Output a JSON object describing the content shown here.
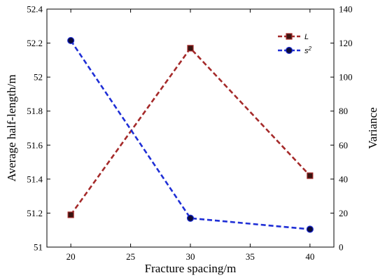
{
  "chart_data": {
    "type": "line",
    "x": [
      20,
      30,
      40
    ],
    "xlabel": "Fracture spacing/m",
    "ylabel_left": "Average half-length/m",
    "ylabel_right": "Variance",
    "xlim": [
      18,
      42
    ],
    "xticks": [
      "20",
      "25",
      "30",
      "35",
      "40"
    ],
    "ylim_left": [
      51,
      52.4
    ],
    "yticks_left": [
      "51",
      "51.2",
      "51.4",
      "51.6",
      "51.8",
      "52",
      "52.2",
      "52.4"
    ],
    "ylim_right": [
      0,
      140
    ],
    "yticks_right": [
      "0",
      "20",
      "40",
      "60",
      "80",
      "100",
      "120",
      "140"
    ],
    "series": [
      {
        "name": "L",
        "axis": "left",
        "marker": "square",
        "color": "#a52a2a",
        "values": [
          51.19,
          52.17,
          51.42
        ]
      },
      {
        "name": "s2",
        "axis": "right",
        "marker": "circle",
        "color": "#1f2fd6",
        "values": [
          121.5,
          17.0,
          10.5
        ]
      }
    ],
    "legend": {
      "position": "top-right",
      "entries": [
        {
          "label_main": "L",
          "label_sup": ""
        },
        {
          "label_main": "s",
          "label_sup": "2"
        }
      ]
    },
    "grid": false
  }
}
